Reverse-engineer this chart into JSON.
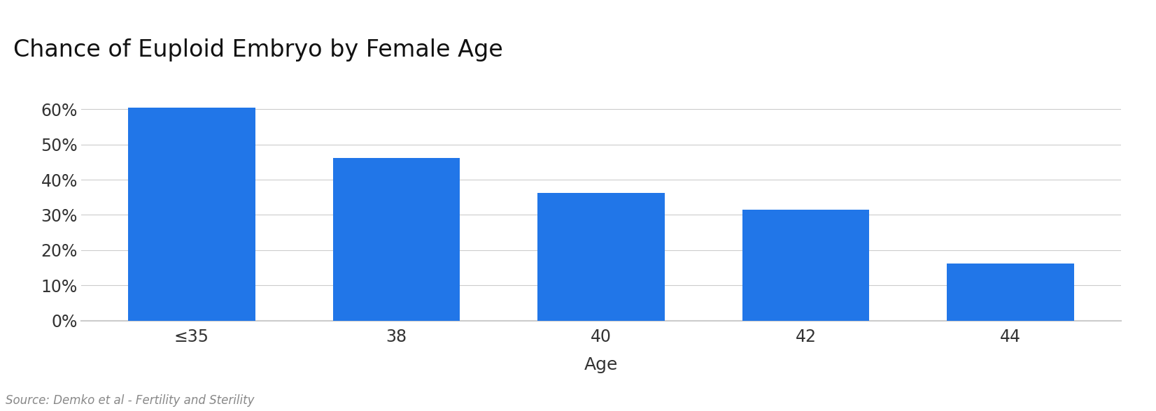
{
  "title": "Chance of Euploid Embryo by Female Age",
  "categories": [
    "≤35",
    "38",
    "40",
    "42",
    "44"
  ],
  "values": [
    0.605,
    0.462,
    0.363,
    0.314,
    0.161
  ],
  "bar_color": "#2176e8",
  "xlabel": "Age",
  "ylabel": "",
  "ylim": [
    0,
    0.7
  ],
  "yticks": [
    0,
    0.1,
    0.2,
    0.3,
    0.4,
    0.5,
    0.6
  ],
  "ytick_labels": [
    "0%",
    "10%",
    "20%",
    "30%",
    "40%",
    "50%",
    "60%"
  ],
  "title_fontsize": 24,
  "tick_fontsize": 17,
  "xlabel_fontsize": 18,
  "source_text": "Source: Demko et al - Fertility and Sterility",
  "background_color": "#ffffff",
  "grid_color": "#cccccc",
  "bar_width": 0.62
}
